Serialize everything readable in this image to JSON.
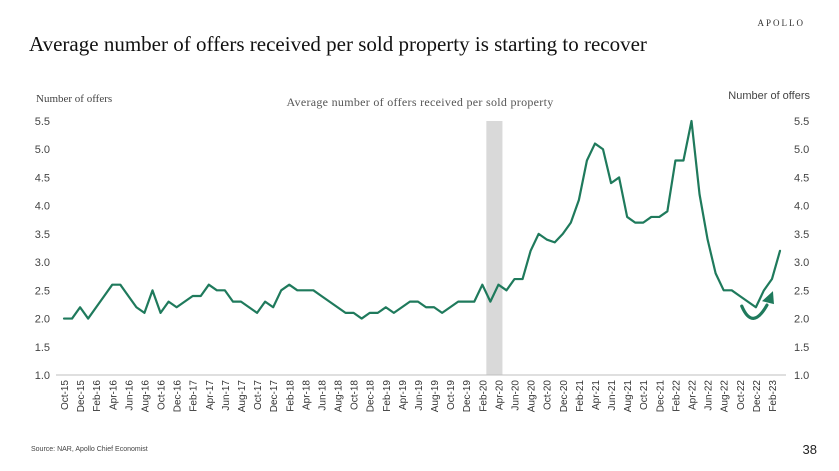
{
  "brand": "APOLLO",
  "headline": "Average number of offers received per sold property is starting to recover",
  "source": "Source: NAR, Apollo Chief Economist",
  "page_number": "38",
  "colors": {
    "line": "#1f7a5c",
    "recession_band": "#d9d9d9",
    "axis": "#bfbfbf"
  },
  "chart_data": {
    "type": "line",
    "title": "Average number of offers received per sold property",
    "ylabel_left": "Number of offers",
    "ylabel_right": "Number of offers",
    "ylim": [
      1.0,
      5.5
    ],
    "yticks": [
      "1.0",
      "1.5",
      "2.0",
      "2.5",
      "3.0",
      "3.5",
      "4.0",
      "4.5",
      "5.0",
      "5.5"
    ],
    "grid": false,
    "x_tick_labels": [
      "Oct-15",
      "Dec-15",
      "Feb-16",
      "Apr-16",
      "Jun-16",
      "Aug-16",
      "Oct-16",
      "Dec-16",
      "Feb-17",
      "Apr-17",
      "Jun-17",
      "Aug-17",
      "Oct-17",
      "Dec-17",
      "Feb-18",
      "Apr-18",
      "Jun-18",
      "Aug-18",
      "Oct-18",
      "Dec-18",
      "Feb-19",
      "Apr-19",
      "Jun-19",
      "Aug-19",
      "Oct-19",
      "Dec-19",
      "Feb-20",
      "Apr-20",
      "Jun-20",
      "Aug-20",
      "Oct-20",
      "Dec-20",
      "Feb-21",
      "Apr-21",
      "Jun-21",
      "Aug-21",
      "Oct-21",
      "Dec-21",
      "Feb-22",
      "Apr-22",
      "Jun-22",
      "Aug-22",
      "Oct-22",
      "Dec-22",
      "Feb-23"
    ],
    "shaded_period": {
      "from": "Mar-20",
      "to": "Apr-20"
    },
    "series": [
      {
        "x": [
          "Oct-15",
          "Nov-15",
          "Dec-15",
          "Jan-16",
          "Feb-16",
          "Mar-16",
          "Apr-16",
          "May-16",
          "Jun-16",
          "Jul-16",
          "Aug-16",
          "Sep-16",
          "Oct-16",
          "Nov-16",
          "Dec-16",
          "Jan-17",
          "Feb-17",
          "Mar-17",
          "Apr-17",
          "May-17",
          "Jun-17",
          "Jul-17",
          "Aug-17",
          "Sep-17",
          "Oct-17",
          "Nov-17",
          "Dec-17",
          "Jan-18",
          "Feb-18",
          "Mar-18",
          "Apr-18",
          "May-18",
          "Jun-18",
          "Jul-18",
          "Aug-18",
          "Sep-18",
          "Oct-18",
          "Nov-18",
          "Dec-18",
          "Jan-19",
          "Feb-19",
          "Mar-19",
          "Apr-19",
          "May-19",
          "Jun-19",
          "Jul-19",
          "Aug-19",
          "Sep-19",
          "Oct-19",
          "Nov-19",
          "Dec-19",
          "Jan-20",
          "Feb-20",
          "Mar-20",
          "Apr-20",
          "May-20",
          "Jun-20",
          "Jul-20",
          "Aug-20",
          "Sep-20",
          "Oct-20",
          "Nov-20",
          "Dec-20",
          "Jan-21",
          "Feb-21",
          "Mar-21",
          "Apr-21",
          "May-21",
          "Jun-21",
          "Jul-21",
          "Aug-21",
          "Sep-21",
          "Oct-21",
          "Nov-21",
          "Dec-21",
          "Jan-22",
          "Feb-22",
          "Mar-22",
          "Apr-22",
          "May-22",
          "Jun-22",
          "Jul-22",
          "Aug-22",
          "Sep-22",
          "Oct-22",
          "Nov-22",
          "Dec-22",
          "Jan-23",
          "Feb-23",
          "Mar-23"
        ],
        "values": [
          2.0,
          2.0,
          2.2,
          2.0,
          2.2,
          2.4,
          2.6,
          2.6,
          2.4,
          2.2,
          2.1,
          2.5,
          2.1,
          2.3,
          2.2,
          2.3,
          2.4,
          2.4,
          2.6,
          2.5,
          2.5,
          2.3,
          2.3,
          2.2,
          2.1,
          2.3,
          2.2,
          2.5,
          2.6,
          2.5,
          2.5,
          2.5,
          2.4,
          2.3,
          2.2,
          2.1,
          2.1,
          2.0,
          2.1,
          2.1,
          2.2,
          2.1,
          2.2,
          2.3,
          2.3,
          2.2,
          2.2,
          2.1,
          2.2,
          2.3,
          2.3,
          2.3,
          2.6,
          2.3,
          2.6,
          2.5,
          2.7,
          2.7,
          3.2,
          3.5,
          3.4,
          3.35,
          3.5,
          3.7,
          4.1,
          4.8,
          5.1,
          5.0,
          4.4,
          4.5,
          3.8,
          3.7,
          3.7,
          3.8,
          3.8,
          3.9,
          4.8,
          4.8,
          5.5,
          4.2,
          3.4,
          2.8,
          2.5,
          2.5,
          2.4,
          2.3,
          2.2,
          2.5,
          2.7,
          3.2
        ]
      }
    ]
  }
}
